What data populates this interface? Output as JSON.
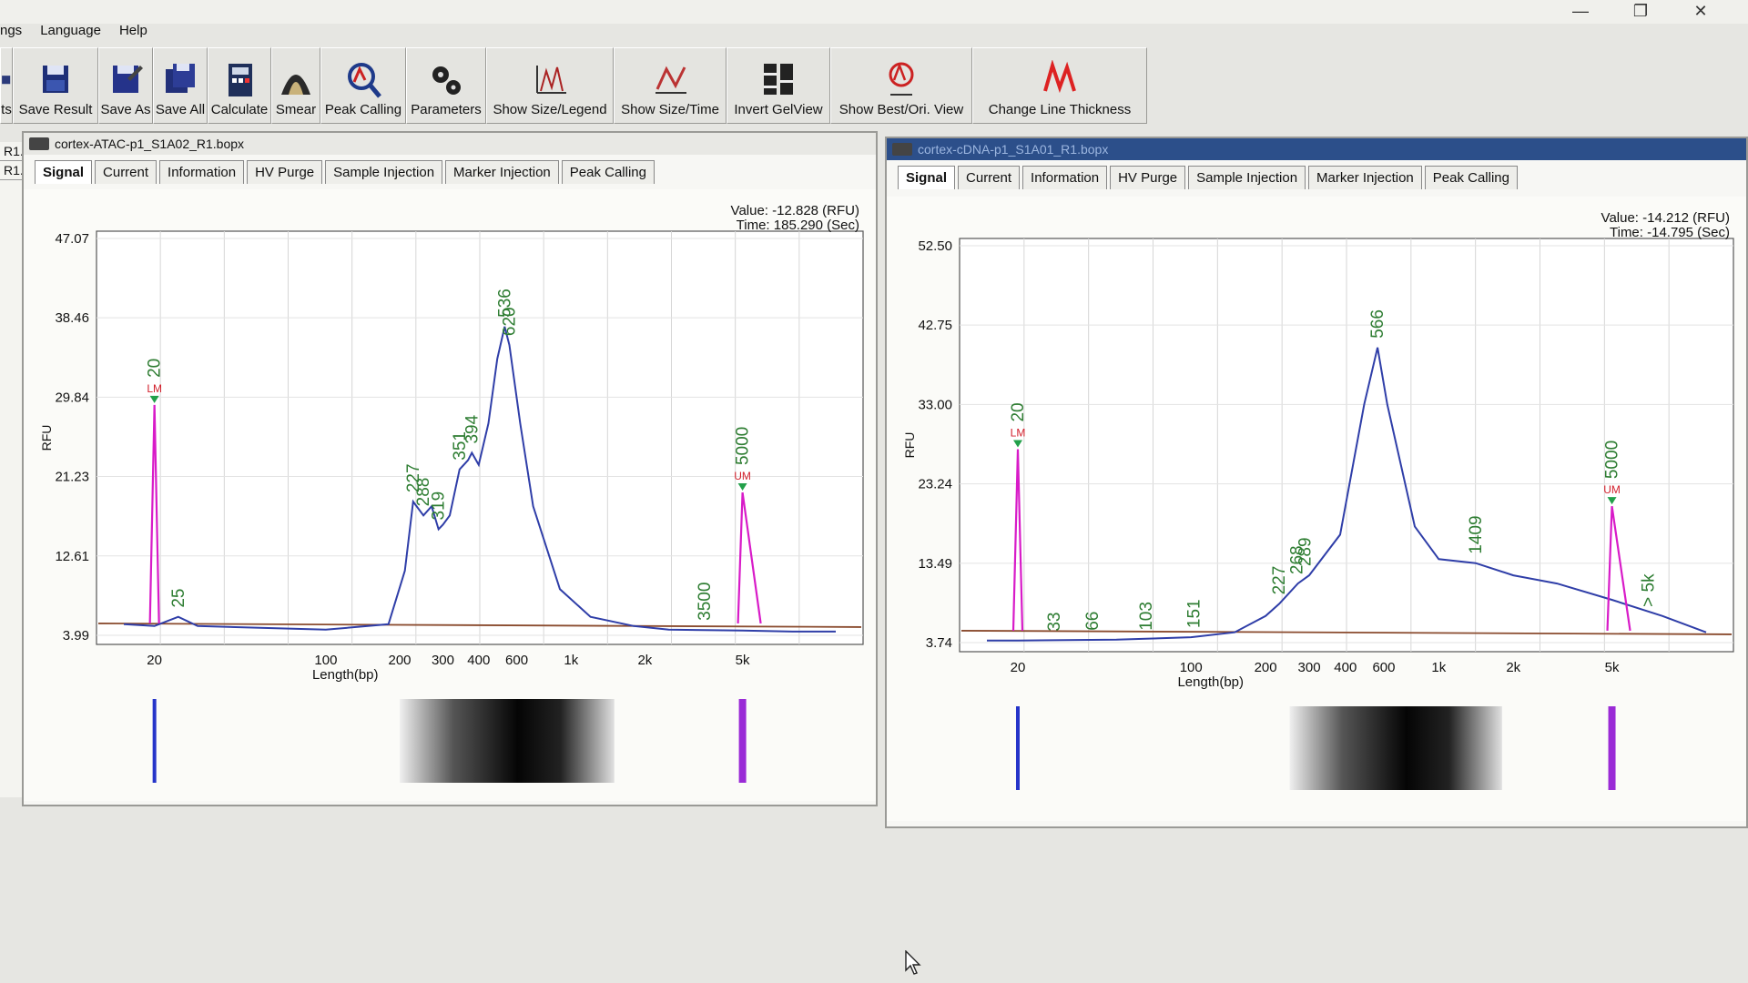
{
  "menu": [
    "ngs",
    "Language",
    "Help"
  ],
  "toolbar": [
    {
      "label": "ts",
      "icon": "partial-icon"
    },
    {
      "label": "Save Result",
      "icon": "save-result-icon"
    },
    {
      "label": "Save As",
      "icon": "save-as-icon"
    },
    {
      "label": "Save All",
      "icon": "save-all-icon"
    },
    {
      "label": "Calculate",
      "icon": "calculator-icon"
    },
    {
      "label": "Smear",
      "icon": "smear-icon"
    },
    {
      "label": "Peak Calling",
      "icon": "peak-calling-icon"
    },
    {
      "label": "Parameters",
      "icon": "gears-icon"
    },
    {
      "label": "Show Size/Legend",
      "icon": "size-legend-icon"
    },
    {
      "label": "Show Size/Time",
      "icon": "size-time-icon"
    },
    {
      "label": "Invert GelView",
      "icon": "gel-view-icon"
    },
    {
      "label": "Show Best/Ori. View",
      "icon": "best-view-icon"
    },
    {
      "label": "Change Line Thickness",
      "icon": "line-thickness-icon"
    }
  ],
  "sidebar": [
    "R1...",
    "R1..."
  ],
  "window_controls": {
    "minimize": "—",
    "restore": "❐",
    "close": "✕"
  },
  "windows": [
    {
      "title": "cortex-ATAC-p1_S1A02_R1.bopx",
      "tabs": [
        "Signal",
        "Current",
        "Information",
        "HV Purge",
        "Sample Injection",
        "Marker Injection",
        "Peak Calling"
      ],
      "active_tab": "Signal",
      "readout_value": "Value: -12.828 (RFU)",
      "readout_time": "Time: 185.290 (Sec)",
      "chart_data": {
        "type": "line",
        "ylabel": "RFU",
        "xlabel": "Length(bp)",
        "yticks": [
          "47.07",
          "38.46",
          "29.84",
          "21.23",
          "12.61",
          "3.99"
        ],
        "ylim": [
          3.99,
          47.07
        ],
        "xtick_labels": [
          "20",
          "100",
          "200",
          "300",
          "400",
          "600",
          "1k",
          "2k",
          "5k"
        ],
        "grid": true,
        "marker_peaks": [
          {
            "bp": 20,
            "label": "20",
            "tag": "LM",
            "rfu": 29.0,
            "color": "#d81bc8"
          },
          {
            "bp": 5000,
            "label": "5000",
            "tag": "UM",
            "rfu": 19.5,
            "color": "#d81bc8"
          }
        ],
        "peak_labels": [
          "25",
          "227",
          "288",
          "319",
          "351",
          "394",
          "536",
          "620",
          "3500"
        ],
        "sample_trace": [
          [
            15,
            5.2
          ],
          [
            20,
            5.0
          ],
          [
            25,
            6.0
          ],
          [
            30,
            5.0
          ],
          [
            100,
            4.6
          ],
          [
            180,
            5.2
          ],
          [
            210,
            11
          ],
          [
            227,
            18.5
          ],
          [
            250,
            17
          ],
          [
            270,
            18
          ],
          [
            288,
            15.5
          ],
          [
            300,
            16
          ],
          [
            320,
            17
          ],
          [
            351,
            22
          ],
          [
            380,
            23
          ],
          [
            394,
            23.8
          ],
          [
            420,
            22.5
          ],
          [
            460,
            27
          ],
          [
            500,
            34
          ],
          [
            536,
            37.5
          ],
          [
            560,
            35.5
          ],
          [
            620,
            27
          ],
          [
            700,
            18
          ],
          [
            900,
            9
          ],
          [
            1200,
            6
          ],
          [
            1800,
            5
          ],
          [
            2500,
            4.6
          ],
          [
            5000,
            4.5
          ],
          [
            8000,
            4.4
          ],
          [
            12000,
            4.4
          ]
        ],
        "gel_band_range_bp": [
          200,
          1500
        ]
      }
    },
    {
      "title": "cortex-cDNA-p1_S1A01_R1.bopx",
      "tabs": [
        "Signal",
        "Current",
        "Information",
        "HV Purge",
        "Sample Injection",
        "Marker Injection",
        "Peak Calling"
      ],
      "active_tab": "Signal",
      "readout_value": "Value: -14.212 (RFU)",
      "readout_time": "Time: -14.795 (Sec)",
      "chart_data": {
        "type": "line",
        "ylabel": "RFU",
        "xlabel": "Length(bp)",
        "yticks": [
          "52.50",
          "42.75",
          "33.00",
          "23.24",
          "13.49",
          "3.74"
        ],
        "ylim": [
          3.74,
          52.5
        ],
        "xtick_labels": [
          "20",
          "100",
          "200",
          "300",
          "400",
          "600",
          "1k",
          "2k",
          "5k"
        ],
        "grid": true,
        "marker_peaks": [
          {
            "bp": 20,
            "label": "20",
            "tag": "LM",
            "rfu": 27.5,
            "color": "#d81bc8"
          },
          {
            "bp": 5000,
            "label": "5000",
            "tag": "UM",
            "rfu": 20.5,
            "color": "#d81bc8"
          }
        ],
        "peak_labels": [
          "33",
          "66",
          "103",
          "151",
          "227",
          "268",
          "289",
          "566",
          "1409",
          "> 5k"
        ],
        "sample_trace": [
          [
            15,
            4.0
          ],
          [
            20,
            4.0
          ],
          [
            50,
            4.1
          ],
          [
            100,
            4.4
          ],
          [
            150,
            5.0
          ],
          [
            200,
            7
          ],
          [
            227,
            8.5
          ],
          [
            270,
            11
          ],
          [
            300,
            12
          ],
          [
            400,
            17
          ],
          [
            500,
            33
          ],
          [
            566,
            40
          ],
          [
            620,
            33
          ],
          [
            800,
            18
          ],
          [
            1000,
            14
          ],
          [
            1409,
            13.5
          ],
          [
            2000,
            12
          ],
          [
            3000,
            11
          ],
          [
            5000,
            9
          ],
          [
            8000,
            7
          ],
          [
            12000,
            5
          ]
        ],
        "gel_band_range_bp": [
          250,
          1800
        ]
      }
    }
  ]
}
